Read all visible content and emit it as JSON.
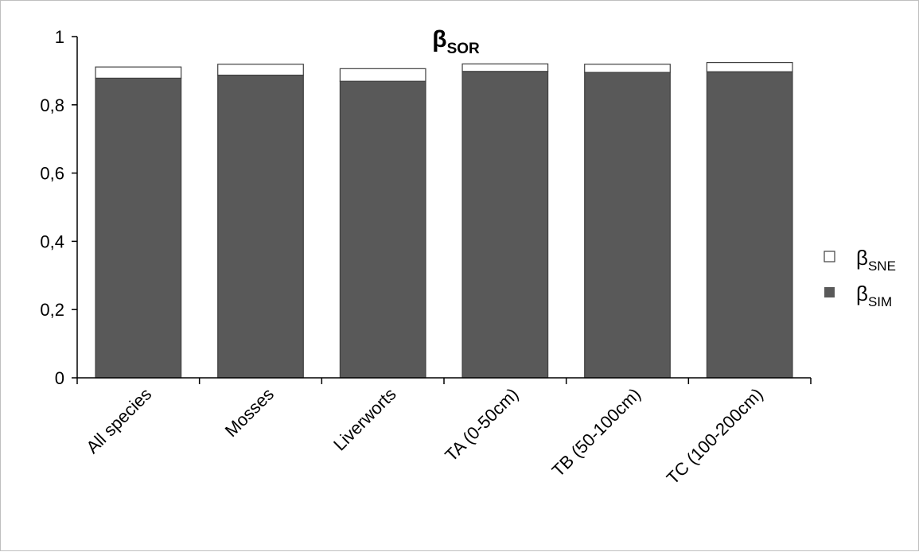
{
  "chart_data": {
    "type": "bar",
    "stacked": true,
    "title": {
      "main": "β",
      "sub": "SOR"
    },
    "categories": [
      "All species",
      "Mosses",
      "Liverworts",
      "TA (0-50cm)",
      "TB (50-100cm)",
      "TC (100-200cm)"
    ],
    "series": [
      {
        "name": "β",
        "name_sub": "SIM",
        "color": "#595959",
        "values": [
          0.878,
          0.887,
          0.869,
          0.898,
          0.895,
          0.897
        ]
      },
      {
        "name": "β",
        "name_sub": "SNE",
        "color": "#ffffff",
        "values": [
          0.033,
          0.032,
          0.037,
          0.022,
          0.024,
          0.027
        ]
      }
    ],
    "y_ticks": [
      "0",
      "0,2",
      "0,4",
      "0,6",
      "0,8",
      "1"
    ],
    "ylim": [
      0,
      1
    ],
    "xlabel": "",
    "ylabel": "",
    "grid": false,
    "legend_position": "right"
  }
}
